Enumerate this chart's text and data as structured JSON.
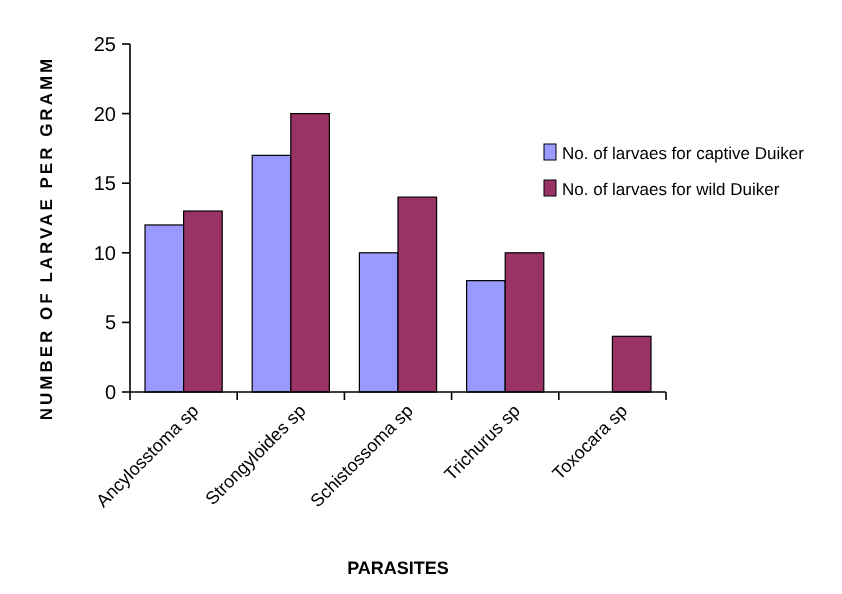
{
  "chart_data": {
    "type": "bar",
    "xlabel": "PARASITES",
    "ylabel": "NUMBER OF LARVAE PER GRAMM",
    "categories": [
      "Ancylosstoma sp",
      "Strongyloides sp",
      "Schistossoma sp",
      "Trichurus sp",
      "Toxocara sp"
    ],
    "series": [
      {
        "name": "No. of larvaes for captive Duiker",
        "color": "#9999ff",
        "values": [
          12,
          17,
          10,
          8,
          0
        ]
      },
      {
        "name": "No. of larvaes for wild Duiker",
        "color": "#993366",
        "values": [
          13,
          20,
          14,
          10,
          4
        ]
      }
    ],
    "ylim": [
      0,
      25
    ],
    "yticks": [
      0,
      5,
      10,
      15,
      20,
      25
    ],
    "legend": "right"
  }
}
